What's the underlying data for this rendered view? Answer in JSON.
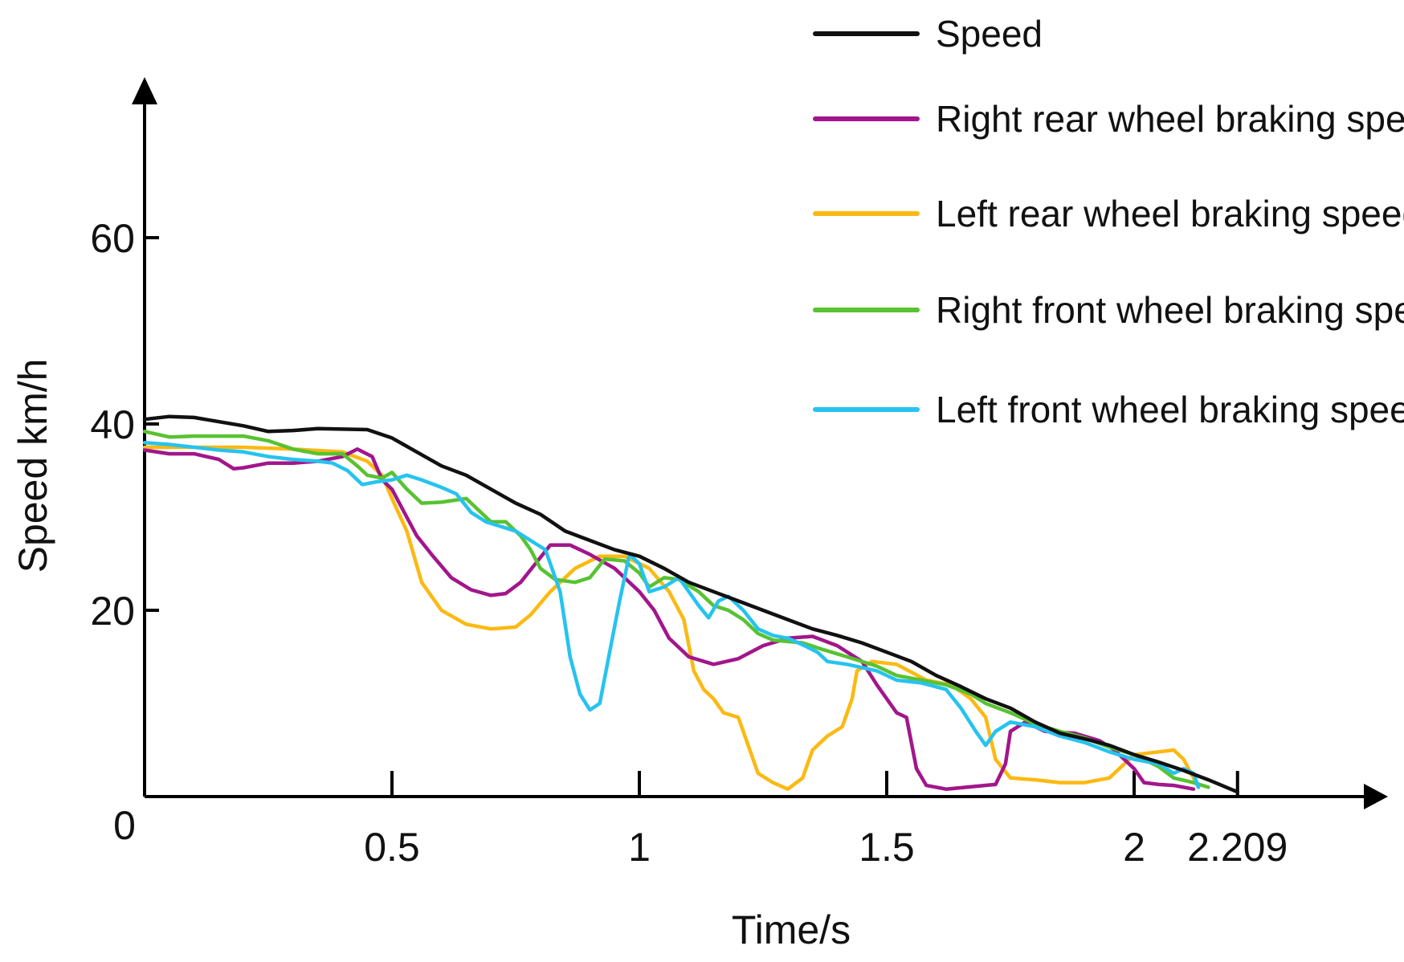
{
  "chart_data": {
    "type": "line",
    "title": "",
    "xlabel": "Time/s",
    "ylabel": "Speed km/h",
    "xlim": [
      0,
      2.55
    ],
    "ylim": [
      0,
      75
    ],
    "origin_label": "0",
    "x_ticks": [
      {
        "value": 0.5,
        "label": "0.5"
      },
      {
        "value": 1,
        "label": "1"
      },
      {
        "value": 1.5,
        "label": "1.5"
      },
      {
        "value": 2,
        "label": "2"
      },
      {
        "value": 2.209,
        "label": "2.209"
      }
    ],
    "y_ticks": [
      {
        "value": 20,
        "label": "20"
      },
      {
        "value": 40,
        "label": "40"
      },
      {
        "value": 60,
        "label": "60"
      }
    ],
    "legend_position": "top-right",
    "series": [
      {
        "name": "Speed",
        "color": "#111111",
        "points": [
          [
            0,
            40.5
          ],
          [
            0.05,
            40.8
          ],
          [
            0.1,
            40.7
          ],
          [
            0.2,
            39.8
          ],
          [
            0.25,
            39.2
          ],
          [
            0.3,
            39.3
          ],
          [
            0.35,
            39.5
          ],
          [
            0.45,
            39.4
          ],
          [
            0.5,
            38.5
          ],
          [
            0.55,
            37.0
          ],
          [
            0.6,
            35.5
          ],
          [
            0.65,
            34.5
          ],
          [
            0.7,
            33.0
          ],
          [
            0.75,
            31.5
          ],
          [
            0.8,
            30.3
          ],
          [
            0.85,
            28.5
          ],
          [
            0.9,
            27.5
          ],
          [
            0.95,
            26.5
          ],
          [
            1.0,
            25.8
          ],
          [
            1.05,
            24.5
          ],
          [
            1.1,
            23.0
          ],
          [
            1.15,
            22.0
          ],
          [
            1.2,
            21.0
          ],
          [
            1.25,
            20.0
          ],
          [
            1.3,
            19.0
          ],
          [
            1.35,
            18.0
          ],
          [
            1.4,
            17.3
          ],
          [
            1.45,
            16.5
          ],
          [
            1.5,
            15.5
          ],
          [
            1.55,
            14.5
          ],
          [
            1.6,
            13.0
          ],
          [
            1.65,
            11.8
          ],
          [
            1.7,
            10.5
          ],
          [
            1.75,
            9.5
          ],
          [
            1.8,
            8.0
          ],
          [
            1.85,
            6.8
          ],
          [
            1.9,
            6.2
          ],
          [
            1.95,
            5.5
          ],
          [
            2.0,
            4.5
          ],
          [
            2.05,
            3.7
          ],
          [
            2.1,
            2.8
          ],
          [
            2.15,
            1.8
          ],
          [
            2.209,
            0.5
          ]
        ]
      },
      {
        "name": "Right rear wheel braking speed",
        "color": "#a2168b",
        "points": [
          [
            0,
            37.2
          ],
          [
            0.05,
            36.8
          ],
          [
            0.1,
            36.8
          ],
          [
            0.15,
            36.2
          ],
          [
            0.18,
            35.2
          ],
          [
            0.2,
            35.3
          ],
          [
            0.25,
            35.8
          ],
          [
            0.3,
            35.8
          ],
          [
            0.35,
            36.0
          ],
          [
            0.4,
            36.5
          ],
          [
            0.43,
            37.3
          ],
          [
            0.46,
            36.5
          ],
          [
            0.48,
            34.0
          ],
          [
            0.5,
            33.0
          ],
          [
            0.52,
            31.0
          ],
          [
            0.55,
            28.0
          ],
          [
            0.58,
            26.0
          ],
          [
            0.62,
            23.5
          ],
          [
            0.66,
            22.2
          ],
          [
            0.7,
            21.6
          ],
          [
            0.73,
            21.8
          ],
          [
            0.76,
            23.0
          ],
          [
            0.79,
            25.0
          ],
          [
            0.82,
            27.0
          ],
          [
            0.86,
            27.0
          ],
          [
            0.9,
            26.0
          ],
          [
            0.95,
            24.5
          ],
          [
            1.0,
            22.0
          ],
          [
            1.03,
            20.0
          ],
          [
            1.06,
            17.0
          ],
          [
            1.1,
            15.0
          ],
          [
            1.15,
            14.2
          ],
          [
            1.2,
            14.8
          ],
          [
            1.25,
            16.2
          ],
          [
            1.3,
            17.0
          ],
          [
            1.35,
            17.2
          ],
          [
            1.4,
            16.2
          ],
          [
            1.45,
            14.5
          ],
          [
            1.48,
            12.0
          ],
          [
            1.52,
            9.0
          ],
          [
            1.54,
            8.5
          ],
          [
            1.56,
            3.0
          ],
          [
            1.58,
            1.2
          ],
          [
            1.62,
            0.8
          ],
          [
            1.66,
            1.0
          ],
          [
            1.72,
            1.3
          ],
          [
            1.74,
            3.5
          ],
          [
            1.75,
            7.0
          ],
          [
            1.78,
            8.0
          ],
          [
            1.82,
            7.0
          ],
          [
            1.88,
            6.8
          ],
          [
            1.93,
            6.0
          ],
          [
            1.96,
            5.0
          ],
          [
            1.98,
            4.0
          ],
          [
            2.0,
            3.0
          ],
          [
            2.02,
            1.5
          ],
          [
            2.05,
            1.3
          ],
          [
            2.08,
            1.2
          ],
          [
            2.12,
            0.8
          ]
        ]
      },
      {
        "name": "Left rear wheel braking speed",
        "color": "#fbb912",
        "points": [
          [
            0,
            37.5
          ],
          [
            0.1,
            37.5
          ],
          [
            0.2,
            37.5
          ],
          [
            0.3,
            37.3
          ],
          [
            0.4,
            37.0
          ],
          [
            0.45,
            36.0
          ],
          [
            0.48,
            34.5
          ],
          [
            0.5,
            32.0
          ],
          [
            0.53,
            28.5
          ],
          [
            0.56,
            23.0
          ],
          [
            0.6,
            20.0
          ],
          [
            0.65,
            18.5
          ],
          [
            0.7,
            18.0
          ],
          [
            0.75,
            18.2
          ],
          [
            0.78,
            19.5
          ],
          [
            0.82,
            22.0
          ],
          [
            0.87,
            24.5
          ],
          [
            0.92,
            25.8
          ],
          [
            0.97,
            25.8
          ],
          [
            1.02,
            24.5
          ],
          [
            1.06,
            22.0
          ],
          [
            1.09,
            19.0
          ],
          [
            1.11,
            13.5
          ],
          [
            1.13,
            11.5
          ],
          [
            1.15,
            10.5
          ],
          [
            1.17,
            9.0
          ],
          [
            1.2,
            8.5
          ],
          [
            1.22,
            5.5
          ],
          [
            1.24,
            2.5
          ],
          [
            1.27,
            1.5
          ],
          [
            1.3,
            0.8
          ],
          [
            1.33,
            2.0
          ],
          [
            1.35,
            5.0
          ],
          [
            1.38,
            6.5
          ],
          [
            1.41,
            7.5
          ],
          [
            1.43,
            10.5
          ],
          [
            1.44,
            13.5
          ],
          [
            1.47,
            14.5
          ],
          [
            1.52,
            14.2
          ],
          [
            1.58,
            12.5
          ],
          [
            1.63,
            12.0
          ],
          [
            1.67,
            10.5
          ],
          [
            1.7,
            8.5
          ],
          [
            1.72,
            4.0
          ],
          [
            1.75,
            2.0
          ],
          [
            1.8,
            1.8
          ],
          [
            1.85,
            1.5
          ],
          [
            1.9,
            1.5
          ],
          [
            1.95,
            2.0
          ],
          [
            1.98,
            3.5
          ],
          [
            2.0,
            4.5
          ],
          [
            2.05,
            4.8
          ],
          [
            2.08,
            5.0
          ],
          [
            2.1,
            4.0
          ],
          [
            2.13,
            1.0
          ]
        ]
      },
      {
        "name": "Right front wheel braking speed",
        "color": "#58c232",
        "points": [
          [
            0,
            39.2
          ],
          [
            0.05,
            38.6
          ],
          [
            0.1,
            38.7
          ],
          [
            0.2,
            38.7
          ],
          [
            0.25,
            38.2
          ],
          [
            0.3,
            37.3
          ],
          [
            0.35,
            36.8
          ],
          [
            0.4,
            36.8
          ],
          [
            0.43,
            35.5
          ],
          [
            0.45,
            34.5
          ],
          [
            0.48,
            34.2
          ],
          [
            0.5,
            34.8
          ],
          [
            0.53,
            33.0
          ],
          [
            0.56,
            31.5
          ],
          [
            0.6,
            31.6
          ],
          [
            0.65,
            32.0
          ],
          [
            0.67,
            31.0
          ],
          [
            0.7,
            29.5
          ],
          [
            0.73,
            29.5
          ],
          [
            0.76,
            28.0
          ],
          [
            0.78,
            26.5
          ],
          [
            0.8,
            24.5
          ],
          [
            0.83,
            23.3
          ],
          [
            0.87,
            23.0
          ],
          [
            0.9,
            23.5
          ],
          [
            0.93,
            25.5
          ],
          [
            0.97,
            25.3
          ],
          [
            1.0,
            24.0
          ],
          [
            1.02,
            22.5
          ],
          [
            1.05,
            23.5
          ],
          [
            1.08,
            23.3
          ],
          [
            1.12,
            22.0
          ],
          [
            1.15,
            20.5
          ],
          [
            1.18,
            20.0
          ],
          [
            1.21,
            19.0
          ],
          [
            1.24,
            17.5
          ],
          [
            1.27,
            16.8
          ],
          [
            1.33,
            16.5
          ],
          [
            1.37,
            15.8
          ],
          [
            1.42,
            15.0
          ],
          [
            1.48,
            14.0
          ],
          [
            1.52,
            13.0
          ],
          [
            1.57,
            12.5
          ],
          [
            1.62,
            12.0
          ],
          [
            1.67,
            11.0
          ],
          [
            1.7,
            10.0
          ],
          [
            1.75,
            9.0
          ],
          [
            1.8,
            7.8
          ],
          [
            1.85,
            7.0
          ],
          [
            1.9,
            6.3
          ],
          [
            1.95,
            5.3
          ],
          [
            2.0,
            4.5
          ],
          [
            2.05,
            3.2
          ],
          [
            2.08,
            2.0
          ],
          [
            2.12,
            1.5
          ],
          [
            2.15,
            1.0
          ]
        ]
      },
      {
        "name": "Left front wheel braking speed",
        "color": "#26c3ef",
        "points": [
          [
            0,
            38.0
          ],
          [
            0.05,
            37.8
          ],
          [
            0.1,
            37.5
          ],
          [
            0.15,
            37.2
          ],
          [
            0.2,
            37.0
          ],
          [
            0.25,
            36.5
          ],
          [
            0.3,
            36.2
          ],
          [
            0.35,
            36.0
          ],
          [
            0.38,
            35.8
          ],
          [
            0.41,
            35.0
          ],
          [
            0.44,
            33.5
          ],
          [
            0.47,
            33.8
          ],
          [
            0.5,
            34.0
          ],
          [
            0.53,
            34.5
          ],
          [
            0.56,
            34.0
          ],
          [
            0.6,
            33.2
          ],
          [
            0.63,
            32.5
          ],
          [
            0.66,
            30.5
          ],
          [
            0.69,
            29.5
          ],
          [
            0.72,
            29.0
          ],
          [
            0.75,
            28.5
          ],
          [
            0.78,
            27.5
          ],
          [
            0.81,
            26.5
          ],
          [
            0.84,
            22.0
          ],
          [
            0.86,
            15.0
          ],
          [
            0.88,
            11.0
          ],
          [
            0.9,
            9.3
          ],
          [
            0.92,
            10.0
          ],
          [
            0.94,
            15.5
          ],
          [
            0.96,
            21.0
          ],
          [
            0.98,
            26.0
          ],
          [
            1.0,
            25.0
          ],
          [
            1.02,
            22.0
          ],
          [
            1.05,
            22.5
          ],
          [
            1.08,
            23.5
          ],
          [
            1.1,
            22.0
          ],
          [
            1.12,
            20.5
          ],
          [
            1.14,
            19.2
          ],
          [
            1.16,
            21.0
          ],
          [
            1.18,
            21.5
          ],
          [
            1.21,
            20.0
          ],
          [
            1.24,
            18.0
          ],
          [
            1.27,
            17.3
          ],
          [
            1.3,
            17.0
          ],
          [
            1.33,
            16.3
          ],
          [
            1.36,
            15.5
          ],
          [
            1.38,
            14.5
          ],
          [
            1.42,
            14.2
          ],
          [
            1.48,
            13.5
          ],
          [
            1.52,
            12.5
          ],
          [
            1.57,
            12.2
          ],
          [
            1.62,
            11.5
          ],
          [
            1.65,
            9.5
          ],
          [
            1.68,
            7.0
          ],
          [
            1.7,
            5.5
          ],
          [
            1.72,
            7.0
          ],
          [
            1.75,
            8.0
          ],
          [
            1.8,
            7.5
          ],
          [
            1.85,
            6.5
          ],
          [
            1.9,
            5.8
          ],
          [
            1.95,
            4.8
          ],
          [
            2.0,
            4.0
          ],
          [
            2.05,
            3.5
          ],
          [
            2.08,
            2.5
          ],
          [
            2.1,
            3.0
          ],
          [
            2.12,
            2.5
          ],
          [
            2.13,
            1.0
          ]
        ]
      }
    ]
  }
}
